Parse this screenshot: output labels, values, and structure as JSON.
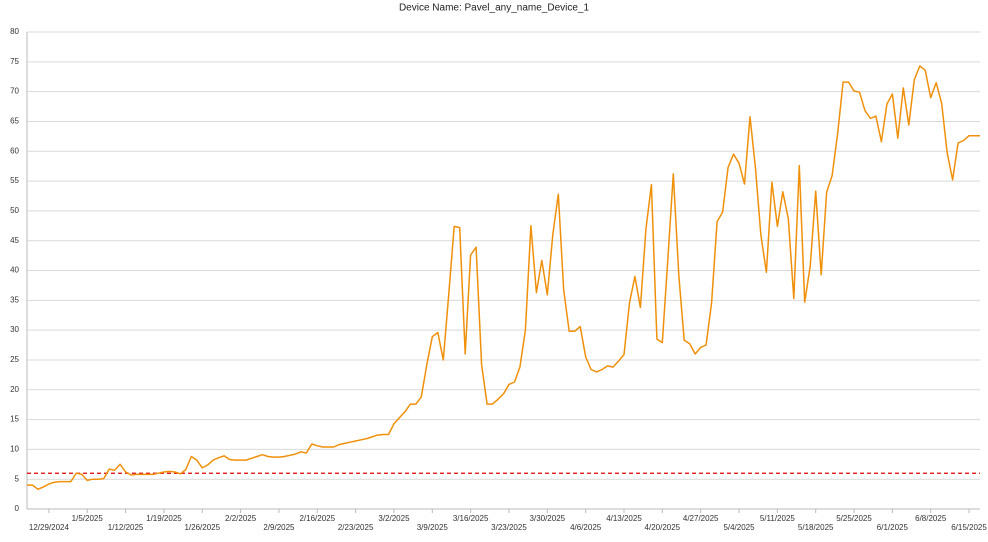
{
  "chart_data": {
    "type": "line",
    "title": "Device Name: Pavel_any_name_Device_1",
    "categories": [
      null,
      null,
      null,
      null,
      "12/29/2024",
      null,
      null,
      null,
      null,
      null,
      null,
      "1/5/2025",
      null,
      null,
      null,
      null,
      null,
      null,
      "1/12/2025",
      null,
      null,
      null,
      null,
      null,
      null,
      "1/19/2025",
      null,
      null,
      null,
      null,
      null,
      null,
      "1/26/2025",
      null,
      null,
      null,
      null,
      null,
      null,
      "2/2/2025",
      null,
      null,
      null,
      null,
      null,
      null,
      "2/9/2025",
      null,
      null,
      null,
      null,
      null,
      null,
      "2/16/2025",
      null,
      null,
      null,
      null,
      null,
      null,
      "2/23/2025",
      null,
      null,
      null,
      null,
      null,
      null,
      "3/2/2025",
      null,
      null,
      null,
      null,
      null,
      null,
      "3/9/2025",
      null,
      null,
      null,
      null,
      null,
      null,
      "3/16/2025",
      null,
      null,
      null,
      null,
      null,
      null,
      "3/23/2025",
      null,
      null,
      null,
      null,
      null,
      null,
      "3/30/2025",
      null,
      null,
      null,
      null,
      null,
      null,
      "4/6/2025",
      null,
      null,
      null,
      null,
      null,
      null,
      "4/13/2025",
      null,
      null,
      null,
      null,
      null,
      null,
      "4/20/2025",
      null,
      null,
      null,
      null,
      null,
      null,
      "4/27/2025",
      null,
      null,
      null,
      null,
      null,
      null,
      "5/4/2025",
      null,
      null,
      null,
      null,
      null,
      null,
      "5/11/2025",
      null,
      null,
      null,
      null,
      null,
      null,
      "5/18/2025",
      null,
      null,
      null,
      null,
      null,
      null,
      "5/25/2025",
      null,
      null,
      null,
      null,
      null,
      null,
      "6/1/2025",
      null,
      null,
      null,
      null,
      null,
      null,
      "6/8/2025",
      null,
      null,
      null,
      null,
      null,
      null,
      "6/15/2025",
      null,
      null
    ],
    "series": [
      {
        "color": "#f0900a",
        "values": [
          4,
          4,
          3.3,
          3.7,
          4.2,
          4.5,
          4.6,
          4.6,
          4.6,
          6.0,
          5.8,
          4.8,
          5.0,
          5.0,
          5.1,
          6.7,
          6.5,
          7.5,
          6.2,
          5.7,
          5.8,
          5.8,
          5.8,
          5.8,
          6.0,
          6.2,
          6.3,
          6.2,
          5.9,
          6.6,
          8.8,
          8.2,
          6.9,
          7.4,
          8.2,
          8.6,
          8.9,
          8.3,
          8.2,
          8.2,
          8.2,
          8.5,
          8.8,
          9.1,
          8.8,
          8.7,
          8.7,
          8.8,
          9.0,
          9.2,
          9.6,
          9.4,
          10.9,
          10.6,
          10.4,
          10.4,
          10.4,
          10.8,
          11.0,
          11.2,
          11.4,
          11.6,
          11.8,
          12.1,
          12.4,
          12.5,
          12.5,
          14.3,
          15.3,
          16.3,
          17.6,
          17.6,
          18.8,
          24.2,
          28.9,
          29.6,
          25.0,
          35.9,
          47.4,
          47.2,
          26.0,
          42.6,
          43.9,
          24.2,
          17.6,
          17.6,
          18.4,
          19.3,
          20.9,
          21.3,
          23.8,
          30.0,
          47.5,
          36.3,
          41.7,
          35.9,
          46.0,
          52.8,
          36.7,
          29.8,
          29.8,
          30.6,
          25.5,
          23.4,
          23.0,
          23.4,
          24.0,
          23.8,
          24.8,
          25.9,
          34.6,
          39.0,
          33.8,
          46.9,
          54.4,
          28.5,
          27.9,
          41.8,
          56.2,
          39.2,
          28.3,
          27.7,
          26.0,
          27.1,
          27.5,
          34.6,
          48.2,
          49.8,
          57.3,
          59.5,
          58.0,
          54.5,
          65.8,
          57.3,
          45.9,
          39.7,
          54.8,
          47.4,
          53.2,
          48.7,
          35.3,
          57.6,
          34.7,
          40.7,
          53.3,
          39.3,
          53.1,
          55.9,
          62.9,
          71.6,
          71.6,
          70.1,
          69.9,
          66.8,
          65.5,
          65.9,
          61.6,
          67.9,
          69.6,
          62.2,
          70.6,
          64.4,
          72.0,
          74.3,
          73.6,
          69.0,
          71.5,
          68.0,
          59.8,
          55.2,
          61.4,
          61.8,
          62.6,
          62.6,
          62.6
        ]
      }
    ],
    "reference_line": {
      "value": 6,
      "color": "#e00000",
      "style": "dashed"
    },
    "ylim": [
      0,
      80
    ],
    "yticks": [
      0,
      5,
      10,
      15,
      20,
      25,
      30,
      35,
      40,
      45,
      50,
      55,
      60,
      65,
      70,
      75,
      80
    ],
    "grid": true
  }
}
